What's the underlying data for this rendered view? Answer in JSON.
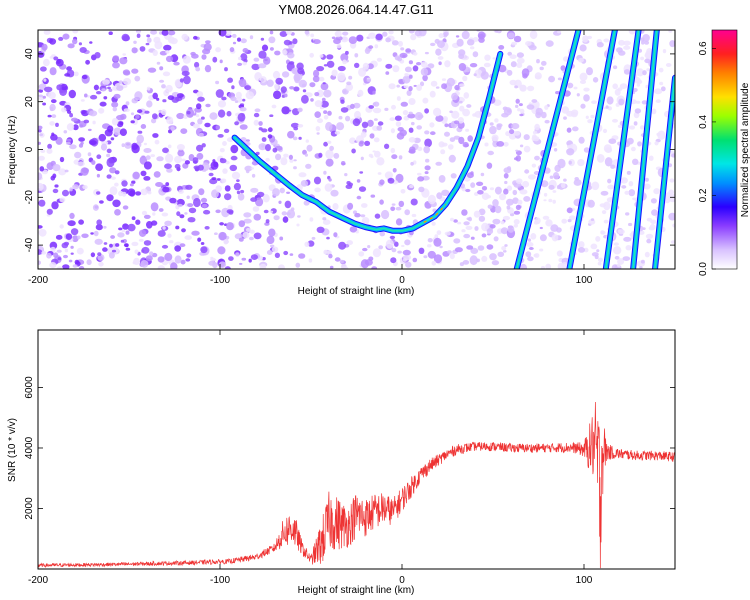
{
  "figure": {
    "title": "YM08.2026.064.14.47.G11"
  },
  "chart_data": [
    {
      "type": "heatmap",
      "title": "",
      "xlabel": "Height of straight line (km)",
      "ylabel": "Frequency (Hz)",
      "xlim": [
        -200,
        150
      ],
      "ylim": [
        -50,
        50
      ],
      "x_ticks": [
        -200,
        -100,
        0,
        100
      ],
      "y_ticks": [
        -40,
        -20,
        0,
        20,
        40
      ],
      "colorbar": {
        "label": "Normalized spectral amplitude",
        "range": [
          0.0,
          0.65
        ],
        "ticks": [
          "0.0",
          "0.2",
          "0.4",
          "0.6"
        ],
        "tick_values": [
          0.0,
          0.2,
          0.4,
          0.6
        ],
        "colors": [
          "#ffffff",
          "#9a4dff",
          "#2a00ff",
          "#00a0ff",
          "#00e0e0",
          "#00e060",
          "#c8ff00",
          "#ffd000",
          "#ff3030",
          "#ff0090"
        ]
      },
      "background_colors": [
        "#ffffff",
        "#efe3ff",
        "#d8bfff",
        "#b98cff",
        "#8f4dff",
        "#7a2cff"
      ],
      "curve": {
        "x": [
          -92,
          -85,
          -78,
          -70,
          -62,
          -55,
          -47,
          -40,
          -33,
          -26,
          -20,
          -14,
          -10,
          -5,
          0,
          6,
          12,
          18,
          24,
          30,
          36,
          42,
          48,
          54
        ],
        "y": [
          5,
          0,
          -5,
          -10,
          -15,
          -19,
          -22,
          -26,
          -28.5,
          -31,
          -32.5,
          -33.5,
          -33,
          -34,
          -34,
          -33,
          -30.5,
          -28,
          -23,
          -16,
          -7,
          5,
          22,
          40
        ]
      },
      "lines": [
        {
          "x": [
            63,
            97
          ],
          "y": [
            -50,
            50
          ]
        },
        {
          "x": [
            92,
            117
          ],
          "y": [
            -50,
            50
          ]
        },
        {
          "x": [
            112,
            130
          ],
          "y": [
            -50,
            50
          ]
        },
        {
          "x": [
            127,
            140
          ],
          "y": [
            -50,
            50
          ]
        },
        {
          "x": [
            139,
            150
          ],
          "y": [
            -50,
            30
          ]
        }
      ]
    },
    {
      "type": "line",
      "title": "",
      "xlabel": "Height of straight line (km)",
      "ylabel": "SNR (10 * v/v)",
      "xlim": [
        -200,
        150
      ],
      "ylim": [
        0,
        7900
      ],
      "x_ticks": [
        -200,
        -100,
        0,
        100
      ],
      "y_ticks": [
        2000,
        4000,
        6000
      ],
      "color": "#ee3333",
      "envelope": {
        "x": [
          -200,
          -160,
          -120,
          -95,
          -80,
          -70,
          -65,
          -60,
          -55,
          -50,
          -44,
          -40,
          -35,
          -30,
          -25,
          -20,
          -15,
          -10,
          -5,
          0,
          5,
          10,
          15,
          20,
          25,
          30,
          40,
          50,
          60,
          70,
          80,
          90,
          95,
          100,
          103,
          105,
          107,
          109,
          110,
          112,
          115,
          120,
          130,
          140,
          150
        ],
        "y": [
          120,
          150,
          200,
          250,
          400,
          700,
          1200,
          1400,
          700,
          300,
          900,
          1600,
          1500,
          1400,
          1800,
          1700,
          1900,
          2000,
          1900,
          2300,
          2700,
          3100,
          3400,
          3600,
          3800,
          3950,
          4050,
          4050,
          4000,
          4000,
          4000,
          4020,
          4000,
          3950,
          4000,
          4100,
          3800,
          2500,
          3900,
          3900,
          3850,
          3800,
          3750,
          3750,
          3700
        ],
        "noise_amplitude": [
          60,
          60,
          70,
          80,
          110,
          150,
          500,
          650,
          250,
          150,
          800,
          1000,
          900,
          700,
          800,
          650,
          600,
          550,
          450,
          420,
          350,
          280,
          230,
          200,
          180,
          170,
          150,
          150,
          150,
          150,
          150,
          170,
          180,
          250,
          800,
          1200,
          1900,
          2600,
          1700,
          400,
          220,
          170,
          160,
          160,
          160
        ]
      }
    }
  ]
}
